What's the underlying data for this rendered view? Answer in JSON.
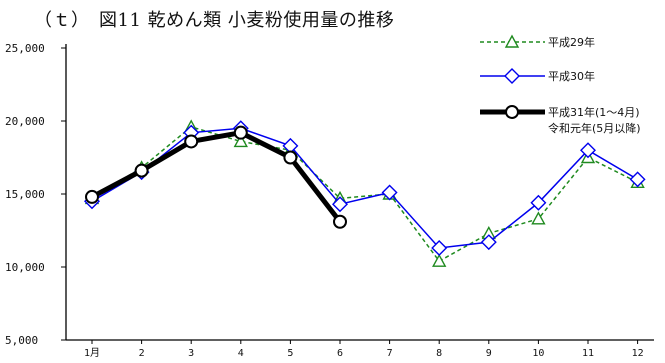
{
  "chart_data": {
    "type": "line",
    "title": "（ｔ）　図11 乾めん類 小麦粉使用量の推移",
    "categories": [
      "1月",
      "2",
      "3",
      "4",
      "5",
      "6",
      "7",
      "8",
      "9",
      "10",
      "11",
      "12"
    ],
    "ylim": [
      5000,
      25000
    ],
    "yticks": [
      "5,000",
      "10,000",
      "15,000",
      "20,000",
      "25,000"
    ],
    "ytick_values": [
      5000,
      10000,
      15000,
      20000,
      25000
    ],
    "grid": false,
    "legend_position": "top-right",
    "series": [
      {
        "name": "平成29年",
        "color": "#1f8a1f",
        "style": "dashed",
        "marker": "triangle",
        "values": [
          14700,
          16800,
          19600,
          18600,
          18000,
          14700,
          15000,
          10400,
          12300,
          13300,
          17500,
          15800
        ]
      },
      {
        "name": "平成30年",
        "color": "#0000ee",
        "style": "solid",
        "marker": "diamond",
        "values": [
          14500,
          16500,
          19200,
          19500,
          18300,
          14300,
          15100,
          11300,
          11700,
          14400,
          18000,
          16000
        ]
      },
      {
        "name": "平成31年(1～4月)",
        "name_line2": "令和元年(5月以降)",
        "color": "#000000",
        "style": "bold",
        "marker": "circle",
        "values": [
          14800,
          16600,
          18600,
          19200,
          17500,
          13100,
          null,
          null,
          null,
          null,
          null,
          null
        ]
      }
    ]
  }
}
